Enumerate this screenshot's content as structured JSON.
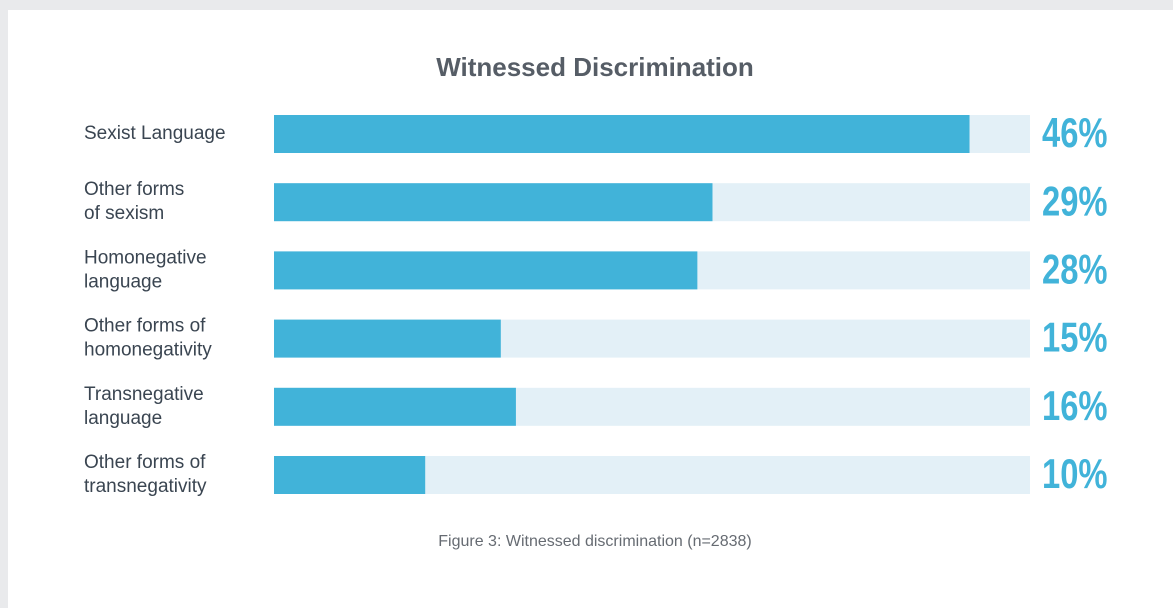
{
  "chart_data": {
    "type": "bar",
    "orientation": "horizontal",
    "title": "Witnessed Discrimination",
    "categories": [
      "Sexist Language",
      "Other forms\nof sexism",
      "Homonegative\nlanguage",
      "Other forms of\nhomonegativity",
      "Transnegative\nlanguage",
      "Other forms of\ntransnegativity"
    ],
    "values": [
      46,
      29,
      28,
      15,
      16,
      10
    ],
    "value_labels": [
      "46%",
      "29%",
      "28%",
      "15%",
      "16%",
      "10%"
    ],
    "color": "#41b3d9",
    "track_color": "#e3f0f7",
    "xlim": [
      0,
      50
    ],
    "caption": "Figure 3: Witnessed discrimination (n=2838)"
  }
}
